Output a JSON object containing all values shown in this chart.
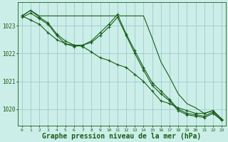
{
  "background_color": "#cceee8",
  "grid_color": "#99cccc",
  "line_color": "#1a5c1a",
  "xlabel": "Graphe pression niveau de la mer (hPa)",
  "xlabel_fontsize": 7,
  "yticks": [
    1020,
    1021,
    1022,
    1023
  ],
  "xticks": [
    0,
    1,
    2,
    3,
    4,
    5,
    6,
    7,
    8,
    9,
    10,
    11,
    12,
    13,
    14,
    15,
    16,
    17,
    18,
    19,
    20,
    21,
    22,
    23
  ],
  "xlim": [
    -0.5,
    23.5
  ],
  "ylim": [
    1019.4,
    1023.85
  ],
  "series": [
    {
      "x": [
        0,
        1,
        2,
        3,
        4,
        5,
        6,
        7,
        8,
        9,
        10,
        11,
        12,
        13,
        14,
        15,
        16,
        17,
        18,
        19,
        20,
        21,
        22,
        23
      ],
      "y": [
        1023.35,
        1023.55,
        1023.35,
        1023.35,
        1023.35,
        1023.35,
        1023.35,
        1023.35,
        1023.35,
        1023.35,
        1023.35,
        1023.35,
        1023.35,
        1023.35,
        1023.35,
        1022.55,
        1021.7,
        1021.15,
        1020.55,
        1020.2,
        1020.05,
        1019.85,
        1019.95,
        1019.65
      ],
      "has_markers": false
    },
    {
      "x": [
        0,
        1,
        2,
        3,
        4,
        5,
        6,
        7,
        8,
        9,
        10,
        11,
        12,
        13,
        14,
        15,
        16,
        17,
        18,
        19,
        20,
        21,
        22,
        23
      ],
      "y": [
        1023.35,
        1023.2,
        1023.05,
        1022.75,
        1022.5,
        1022.35,
        1022.3,
        1022.25,
        1022.05,
        1021.85,
        1021.75,
        1021.6,
        1021.5,
        1021.25,
        1021.0,
        1020.65,
        1020.3,
        1020.2,
        1020.05,
        1019.95,
        1019.85,
        1019.85,
        1019.95,
        1019.65
      ],
      "has_markers": true
    },
    {
      "x": [
        0,
        1,
        2,
        3,
        4,
        5,
        6,
        7,
        8,
        9,
        10,
        11,
        12,
        13,
        14,
        15,
        16,
        17,
        18,
        19,
        20,
        21,
        22,
        23
      ],
      "y": [
        1023.35,
        1023.55,
        1023.3,
        1023.1,
        1022.7,
        1022.45,
        1022.3,
        1022.3,
        1022.45,
        1022.75,
        1023.05,
        1023.4,
        1022.7,
        1022.1,
        1021.5,
        1020.95,
        1020.65,
        1020.35,
        1020.0,
        1019.85,
        1019.8,
        1019.75,
        1019.9,
        1019.6
      ],
      "has_markers": true
    },
    {
      "x": [
        0,
        1,
        2,
        3,
        4,
        5,
        6,
        7,
        8,
        9,
        10,
        11,
        12,
        13,
        14,
        15,
        16,
        17,
        18,
        19,
        20,
        21,
        22,
        23
      ],
      "y": [
        1023.3,
        1023.45,
        1023.25,
        1023.05,
        1022.65,
        1022.35,
        1022.25,
        1022.3,
        1022.4,
        1022.65,
        1022.95,
        1023.3,
        1022.65,
        1022.0,
        1021.4,
        1020.85,
        1020.55,
        1020.3,
        1019.95,
        1019.8,
        1019.75,
        1019.7,
        1019.85,
        1019.6
      ],
      "has_markers": true
    }
  ]
}
